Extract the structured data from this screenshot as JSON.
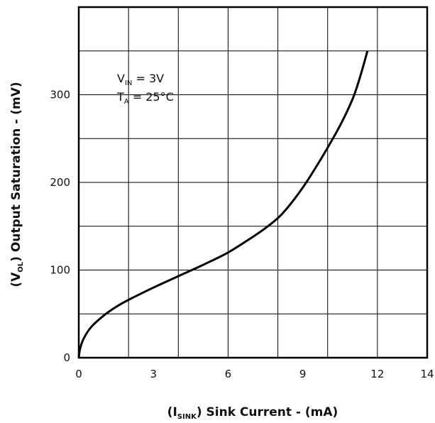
{
  "chart_data": {
    "type": "line",
    "xlabel": {
      "prefix": "(I",
      "sub": "SINK",
      "suffix": ")  Sink Current - (mA)"
    },
    "ylabel": {
      "prefix": "(V",
      "sub": "OL",
      "suffix": ")  Output Saturation - (mV)"
    },
    "xlim": [
      0,
      14
    ],
    "ylim": [
      0,
      400
    ],
    "x_ticks": [
      0,
      3,
      6,
      9,
      12,
      14
    ],
    "x_tick_labels": [
      "0",
      "3",
      "6",
      "9",
      "12",
      "14"
    ],
    "y_ticks": [
      0,
      100,
      200,
      300
    ],
    "y_tick_labels": [
      "0",
      "100",
      "200",
      "300"
    ],
    "x_gridlines": [
      2,
      4,
      6,
      8,
      10,
      12
    ],
    "y_gridlines": [
      50,
      100,
      150,
      200,
      250,
      300,
      350
    ],
    "grid": true,
    "annotations": [
      {
        "main": "V",
        "sub": "IN",
        "rest": " = 3V"
      },
      {
        "main": "T",
        "sub": "A",
        "rest": " = 25°C"
      }
    ],
    "series": [
      {
        "x": [
          0,
          0.05,
          0.2,
          0.5,
          1.0,
          1.5,
          2.0,
          3.0,
          4.0,
          5.0,
          6.0,
          7.0,
          7.6,
          8.2,
          9.0,
          9.8,
          10.5,
          11.0,
          11.3,
          11.6
        ],
        "y": [
          0,
          10,
          22,
          35,
          48,
          58,
          66,
          80,
          93,
          106,
          120,
          138,
          150,
          165,
          194,
          230,
          265,
          295,
          320,
          350
        ]
      }
    ],
    "line_color": "#000000"
  }
}
